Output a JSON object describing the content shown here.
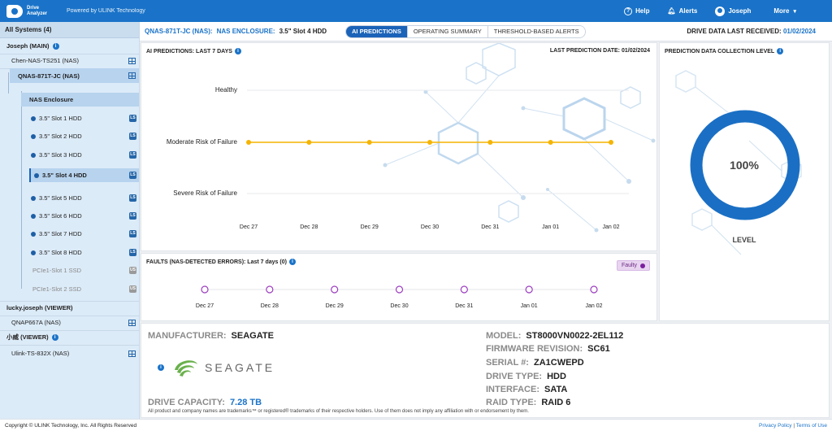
{
  "topbar": {
    "logo_line1": "Drive",
    "logo_line2": "Analyzer",
    "powered": "Powered by ULINK Technology",
    "help": "Help",
    "alerts": "Alerts",
    "user": "Joseph",
    "more": "More"
  },
  "sidebar": {
    "title": "All Systems (4)",
    "items": [
      {
        "label": "Joseph (MAIN)",
        "kind": "group"
      },
      {
        "label": "Chen-NAS-TS251 (NAS)",
        "kind": "nas"
      },
      {
        "label": "QNAS-871T-JC (NAS)",
        "kind": "nas"
      },
      {
        "label": "NAS Enclosure",
        "kind": "enclosure"
      },
      {
        "label": "3.5\" Slot 1 HDD",
        "tag": "LS"
      },
      {
        "label": "3.5\" Slot 2 HDD",
        "tag": "LS"
      },
      {
        "label": "3.5\" Slot 3 HDD",
        "tag": "LS"
      },
      {
        "label": "3.5\" Slot 4 HDD",
        "tag": "LS"
      },
      {
        "label": "3.5\" Slot 5 HDD",
        "tag": "LS"
      },
      {
        "label": "3.5\" Slot 6 HDD",
        "tag": "LS"
      },
      {
        "label": "3.5\" Slot 7 HDD",
        "tag": "LS"
      },
      {
        "label": "3.5\" Slot 8 HDD",
        "tag": "LS"
      },
      {
        "label": "PCIe1-Slot 1 SSD",
        "tag": "US"
      },
      {
        "label": "PCIe1-Slot 2 SSD",
        "tag": "US"
      },
      {
        "label": "lucky.joseph (VIEWER)",
        "kind": "group"
      },
      {
        "label": "QNAP667A (NAS)",
        "kind": "nas"
      },
      {
        "label": "小威 (VIEWER)",
        "kind": "group"
      },
      {
        "label": "Ulink-TS-832X (NAS)",
        "kind": "nas"
      }
    ]
  },
  "header": {
    "crumb_system": "QNAS-871T-JC (NAS):",
    "crumb_enclosure": "NAS ENCLOSURE:",
    "crumb_drive": "3.5\" Slot 4 HDD",
    "tabs": [
      "AI PREDICTIONS",
      "OPERATING SUMMARY",
      "THRESHOLD-BASED ALERTS"
    ],
    "last_received_label": "DRIVE DATA LAST RECEIVED:",
    "last_received_value": "01/02/2024"
  },
  "predictions": {
    "title": "AI PREDICTIONS: LAST 7 DAYS",
    "last_date": "LAST PREDICTION DATE: 01/02/2024"
  },
  "chart_data": [
    {
      "type": "line",
      "title": "AI PREDICTIONS: LAST 7 DAYS",
      "categories": [
        "Dec 27",
        "Dec 28",
        "Dec 29",
        "Dec 30",
        "Dec 31",
        "Jan 01",
        "Jan 02"
      ],
      "y_levels": [
        "Healthy",
        "Moderate Risk of Failure",
        "Severe Risk of Failure"
      ],
      "series": [
        {
          "values": [
            "Moderate Risk of Failure",
            "Moderate Risk of Failure",
            "Moderate Risk of Failure",
            "Moderate Risk of Failure",
            "Moderate Risk of Failure",
            "Moderate Risk of Failure",
            "Moderate Risk of Failure"
          ],
          "color": "#f5b400"
        }
      ]
    },
    {
      "type": "scatter",
      "title": "FAULTS (NAS-DETECTED ERRORS): Last 7 days (0)",
      "categories": [
        "Dec 27",
        "Dec 28",
        "Dec 29",
        "Dec 30",
        "Dec 31",
        "Jan 01",
        "Jan 02"
      ],
      "legend": "Faulty",
      "series": [
        {
          "values": [
            0,
            0,
            0,
            0,
            0,
            0,
            0
          ],
          "color": "#9b3cbf"
        }
      ]
    }
  ],
  "faults": {
    "title": "FAULTS (NAS-DETECTED ERRORS): Last 7 days (0)",
    "legend": "Faulty"
  },
  "level": {
    "title": "PREDICTION DATA COLLECTION LEVEL",
    "percent_text": "100%",
    "fraction": 1.0,
    "label": "LEVEL",
    "color": "#1a6fc4"
  },
  "drive": {
    "manufacturer_label": "MANUFACTURER:",
    "manufacturer": "SEAGATE",
    "logo_word": "SEAGATE",
    "capacity_label": "DRIVE CAPACITY:",
    "capacity": "7.28 TB",
    "model_label": "MODEL:",
    "model": "ST8000VN0022-2EL112",
    "firmware_label": "FIRMWARE REVISION:",
    "firmware": "SC61",
    "serial_label": "SERIAL #:",
    "serial": "ZA1CWEPD",
    "type_label": "DRIVE TYPE:",
    "type": "HDD",
    "interface_label": "INTERFACE:",
    "interface": "SATA",
    "raid_label": "RAID TYPE:",
    "raid": "RAID 6",
    "disclaimer": "All product and company names are trademarks™ or registered® trademarks of their respective holders. Use of them does not imply any affiliation with or endorsement by them."
  },
  "footer": {
    "copyright": "Copyright © ULINK Technology, Inc. All Rights Reserved",
    "privacy": "Privacy Policy",
    "sep": " | ",
    "terms": "Terms of Use"
  }
}
